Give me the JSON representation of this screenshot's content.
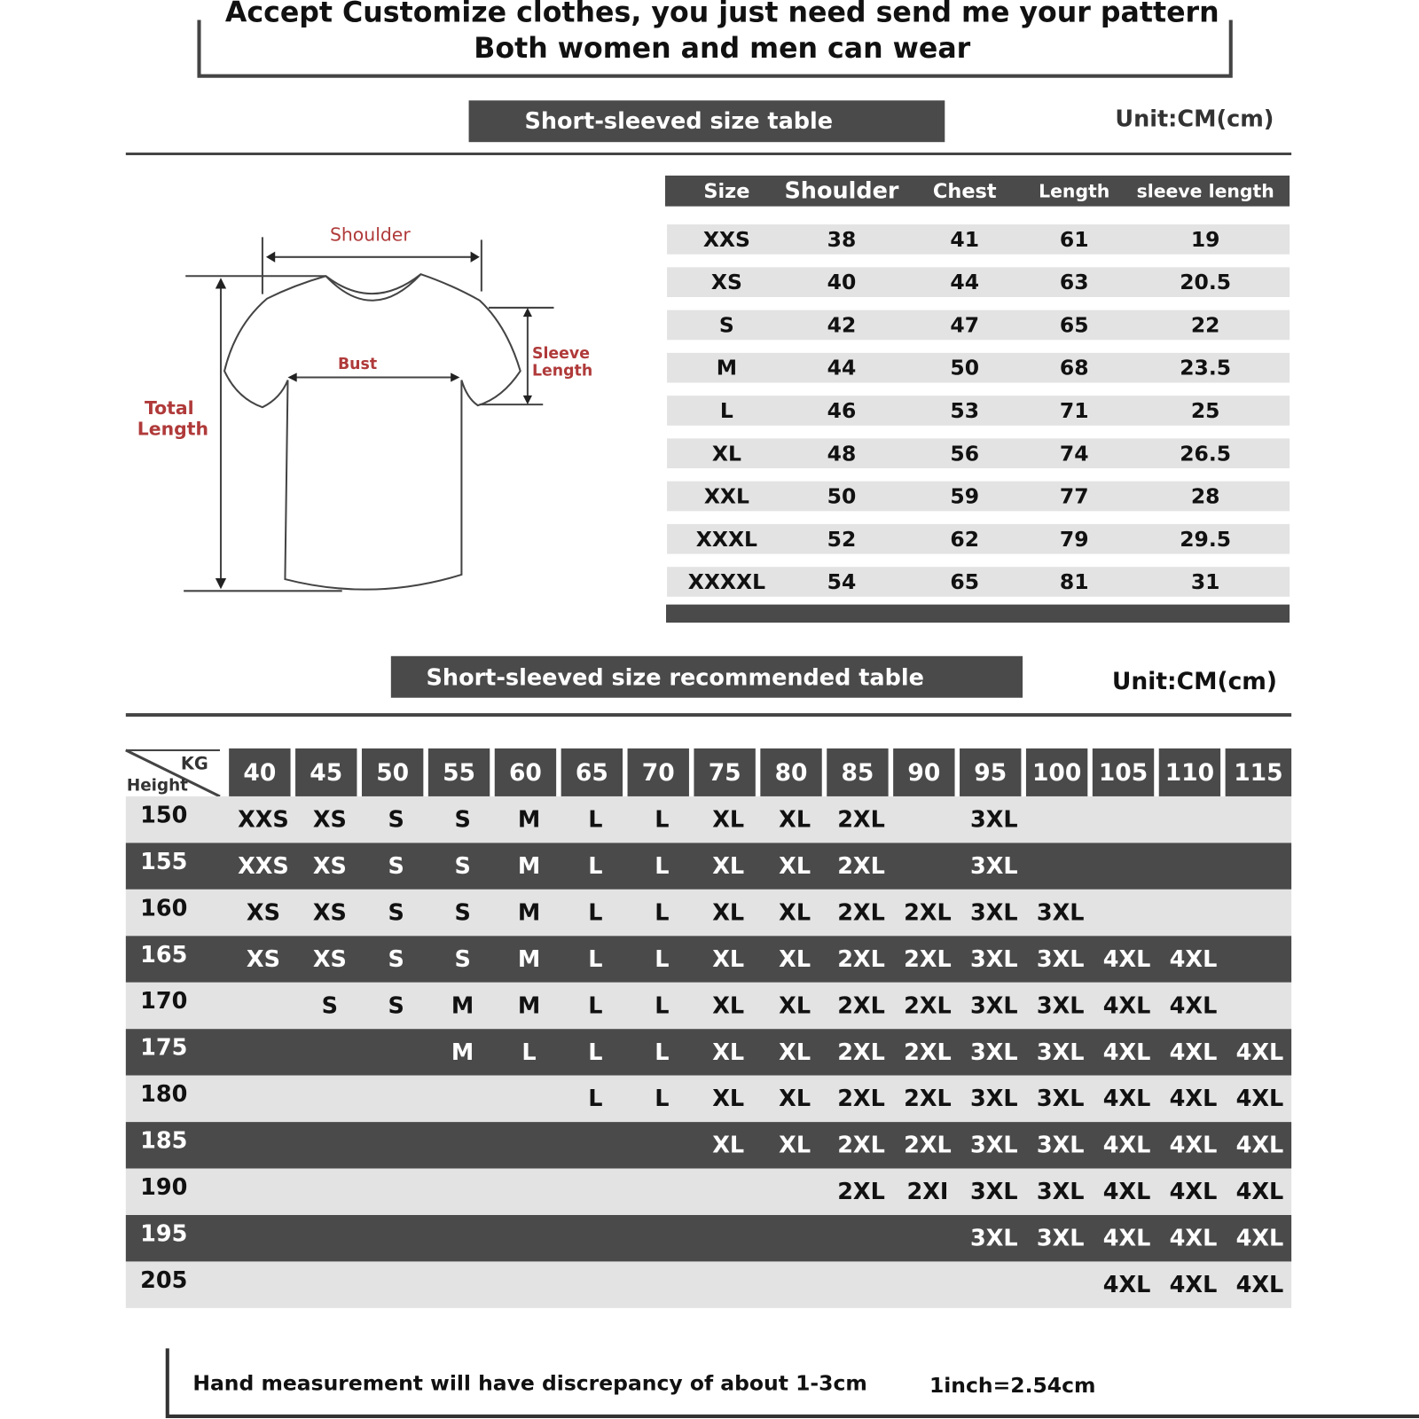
{
  "header": {
    "lines": [
      "Accept Customize clothes, you just need send me your pattern",
      "Both women and men can wear"
    ]
  },
  "size_table": {
    "title": "Short-sleeved size  table",
    "unit": "Unit:CM(cm)",
    "columns": [
      "Size",
      "Shoulder",
      "Chest",
      "Length",
      "sleeve length"
    ],
    "rows": [
      [
        "XXS",
        38,
        41,
        61,
        19
      ],
      [
        "XS",
        40,
        44,
        63,
        20.5
      ],
      [
        "S",
        42,
        47,
        65,
        22
      ],
      [
        "M",
        44,
        50,
        68,
        23.5
      ],
      [
        "L",
        46,
        53,
        71,
        25
      ],
      [
        "XL",
        48,
        56,
        74,
        26.5
      ],
      [
        "XXL",
        50,
        59,
        77,
        28
      ],
      [
        "XXXL",
        52,
        62,
        79,
        29.5
      ],
      [
        "XXXXL",
        54,
        65,
        81,
        31
      ]
    ]
  },
  "diagram": {
    "shoulder": "Shoulder",
    "bust": "Bust",
    "sleeve_length": [
      "Sleeve",
      "Length"
    ],
    "total_length": [
      "Total",
      "Length"
    ]
  },
  "recommend_table": {
    "title": "Short-sleeved size recommended table",
    "unit": "Unit:CM(cm)",
    "corner": {
      "kg": "KG",
      "height": "Height"
    },
    "weights": [
      40,
      45,
      50,
      55,
      60,
      65,
      70,
      75,
      80,
      85,
      90,
      95,
      100,
      105,
      110,
      115
    ],
    "rows": [
      {
        "height": 150,
        "sizes": [
          "XXS",
          "XS",
          "S",
          "S",
          "M",
          "L",
          "L",
          "XL",
          "XL",
          "2XL",
          null,
          "3XL",
          null,
          null,
          null,
          null
        ]
      },
      {
        "height": 155,
        "sizes": [
          "XXS",
          "XS",
          "S",
          "S",
          "M",
          "L",
          "L",
          "XL",
          "XL",
          "2XL",
          null,
          "3XL",
          null,
          null,
          null,
          null
        ]
      },
      {
        "height": 160,
        "sizes": [
          "XS",
          "XS",
          "S",
          "S",
          "M",
          "L",
          "L",
          "XL",
          "XL",
          "2XL",
          "2XL",
          "3XL",
          "3XL",
          null,
          null,
          null
        ]
      },
      {
        "height": 165,
        "sizes": [
          "XS",
          "XS",
          "S",
          "S",
          "M",
          "L",
          "L",
          "XL",
          "XL",
          "2XL",
          "2XL",
          "3XL",
          "3XL",
          "4XL",
          "4XL",
          null
        ]
      },
      {
        "height": 170,
        "sizes": [
          null,
          "S",
          "S",
          "M",
          "M",
          "L",
          "L",
          "XL",
          "XL",
          "2XL",
          "2XL",
          "3XL",
          "3XL",
          "4XL",
          "4XL",
          null
        ]
      },
      {
        "height": 175,
        "sizes": [
          null,
          null,
          null,
          "M",
          "L",
          "L",
          "L",
          "XL",
          "XL",
          "2XL",
          "2XL",
          "3XL",
          "3XL",
          "4XL",
          "4XL",
          "4XL"
        ]
      },
      {
        "height": 180,
        "sizes": [
          null,
          null,
          null,
          null,
          null,
          "L",
          "L",
          "XL",
          "XL",
          "2XL",
          "2XL",
          "3XL",
          "3XL",
          "4XL",
          "4XL",
          "4XL"
        ]
      },
      {
        "height": 185,
        "sizes": [
          null,
          null,
          null,
          null,
          null,
          null,
          null,
          "XL",
          "XL",
          "2XL",
          "2XL",
          "3XL",
          "3XL",
          "4XL",
          "4XL",
          "4XL"
        ]
      },
      {
        "height": 190,
        "sizes": [
          null,
          null,
          null,
          null,
          null,
          null,
          null,
          null,
          null,
          "2XL",
          "2XI",
          "3XL",
          "3XL",
          "4XL",
          "4XL",
          "4XL"
        ]
      },
      {
        "height": 195,
        "sizes": [
          null,
          null,
          null,
          null,
          null,
          null,
          null,
          null,
          null,
          null,
          null,
          "3XL",
          "3XL",
          "4XL",
          "4XL",
          "4XL"
        ]
      },
      {
        "height": 205,
        "sizes": [
          null,
          null,
          null,
          null,
          null,
          null,
          null,
          null,
          null,
          null,
          null,
          null,
          null,
          "4XL",
          "4XL",
          "4XL"
        ]
      }
    ]
  },
  "footer": {
    "note": "Hand measurement will have discrepancy of about  1-3cm",
    "conversion": "1inch=2.54cm"
  }
}
